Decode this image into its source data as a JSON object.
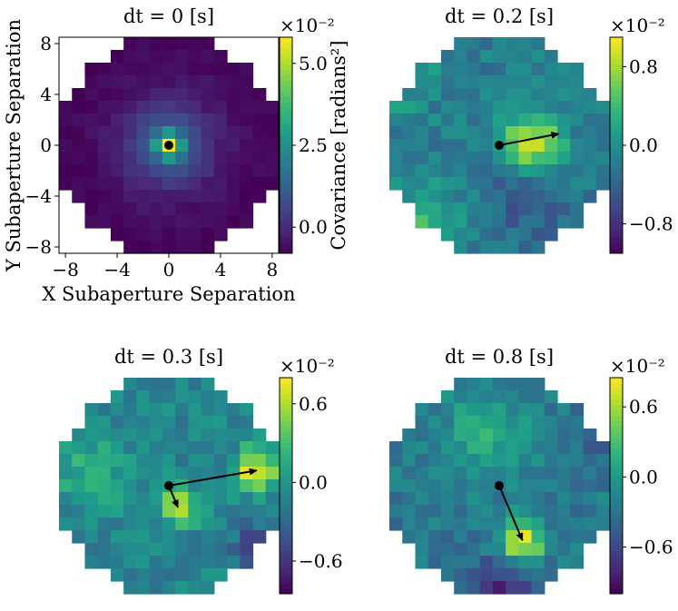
{
  "chart_data": [
    {
      "type": "heatmap",
      "title": "dt = 0 [s]",
      "xlabel": "X Subaperture Separation",
      "ylabel": "Y Subaperture Separation",
      "x_ticks": [
        -8,
        -4,
        0,
        4,
        8
      ],
      "y_ticks": [
        -8,
        -4,
        0,
        4,
        8
      ],
      "xlim": [
        -8.5,
        8.5
      ],
      "ylim": [
        -8.5,
        8.5
      ],
      "colorbar": {
        "label": "Covariance [radians²]",
        "multiplier": "×10⁻²",
        "range": [
          -0.8,
          5.8
        ],
        "ticks": [
          0.0,
          2.5,
          5.0
        ],
        "tick_labels": [
          "0.0",
          "2.5",
          "5.0"
        ]
      },
      "peak_marker": [
        0,
        0
      ],
      "arrows": [],
      "texture_seed": 3
    },
    {
      "type": "heatmap",
      "title": "dt = 0.2 [s]",
      "xlim": [
        -8.5,
        8.5
      ],
      "ylim": [
        -8.5,
        8.5
      ],
      "colorbar": {
        "multiplier": "×10⁻²",
        "range": [
          -1.1,
          1.1
        ],
        "ticks": [
          -0.8,
          0.0,
          0.8
        ],
        "tick_labels": [
          "−0.8",
          "0.0",
          "0.8"
        ]
      },
      "peak_marker": [
        0,
        0
      ],
      "arrows": [
        {
          "from": [
            0,
            0
          ],
          "to": [
            4.6,
            0.9
          ]
        }
      ],
      "texture_seed": 11
    },
    {
      "type": "heatmap",
      "title": "dt = 0.3 [s]",
      "xlim": [
        -8.5,
        8.5
      ],
      "ylim": [
        -8.5,
        8.5
      ],
      "colorbar": {
        "multiplier": "×10⁻²",
        "range": [
          -0.85,
          0.8
        ],
        "ticks": [
          -0.6,
          0.0,
          0.6
        ],
        "tick_labels": [
          "−0.6",
          "0.0",
          "0.6"
        ]
      },
      "peak_marker": [
        0,
        0
      ],
      "arrows": [
        {
          "from": [
            0,
            0
          ],
          "to": [
            6.8,
            1.2
          ]
        },
        {
          "from": [
            0,
            0
          ],
          "to": [
            0.7,
            -1.7
          ]
        }
      ],
      "texture_seed": 23
    },
    {
      "type": "heatmap",
      "title": "dt = 0.8 [s]",
      "xlim": [
        -8.5,
        8.5
      ],
      "ylim": [
        -8.5,
        8.5
      ],
      "colorbar": {
        "multiplier": "×10⁻²",
        "range": [
          -1.0,
          0.85
        ],
        "ticks": [
          -0.6,
          0.0,
          0.6
        ],
        "tick_labels": [
          "−0.6",
          "0.0",
          "0.6"
        ]
      },
      "peak_marker": [
        0,
        0
      ],
      "arrows": [
        {
          "from": [
            0,
            0
          ],
          "to": [
            1.8,
            -4.3
          ]
        }
      ],
      "texture_seed": 41
    }
  ]
}
